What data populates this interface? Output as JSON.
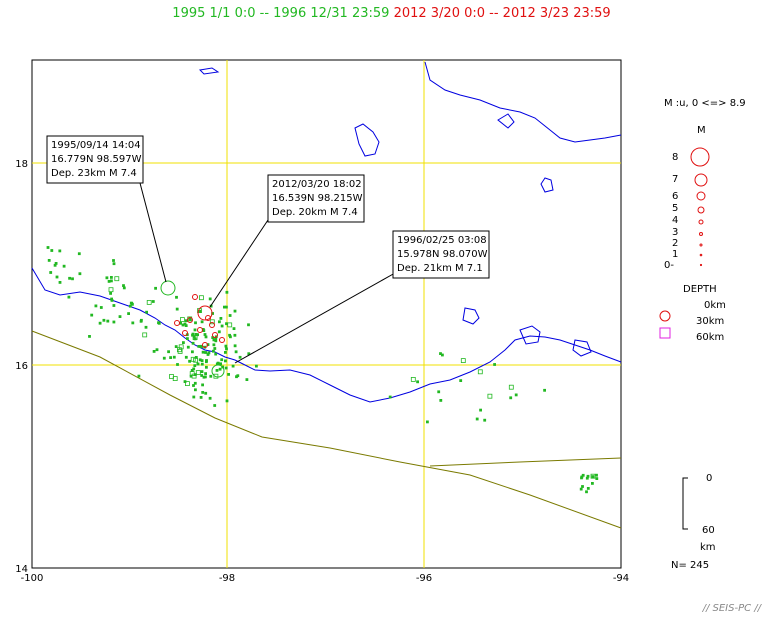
{
  "title": {
    "range1": "1995 1/1 0:0 -- 1996 12/31 23:59",
    "range2": "2012 3/20 0:0 -- 2012 3/23 23:59",
    "color1": "#22b822",
    "color2": "#e01010"
  },
  "map": {
    "lon_ticks": [
      "-100",
      "-98",
      "-96",
      "-94"
    ],
    "lat_ticks": [
      "18",
      "16",
      "14"
    ],
    "grid_color": "#f0e000",
    "coast_color": "#0000e0",
    "trench_color": "#7a7a00"
  },
  "annotations": [
    {
      "line1": "1995/09/14 14:04",
      "line2": "16.779N  98.597W",
      "line3": "Dep. 23km    M 7.4"
    },
    {
      "line1": "2012/03/20 18:02",
      "line2": "16.539N  98.215W",
      "line3": "Dep. 20km    M 7.4"
    },
    {
      "line1": "1996/02/25 03:08",
      "line2": "15.978N  98.070W",
      "line3": "Dep. 21km    M 7.1"
    }
  ],
  "legend": {
    "mag_header": "M :u, 0 <=> 8.9",
    "mag_title": "M",
    "mag_values": [
      "8",
      "7",
      "6",
      "5",
      "4",
      "3",
      "2",
      "1",
      "0-"
    ],
    "depth_title": "DEPTH",
    "depth_values": [
      "0km",
      "30km",
      "60km"
    ],
    "depth_scale_top": "0",
    "depth_scale_bottom": "60",
    "depth_scale_unit": "km",
    "count": "N= 245"
  },
  "footer": "// SEIS-PC //"
}
